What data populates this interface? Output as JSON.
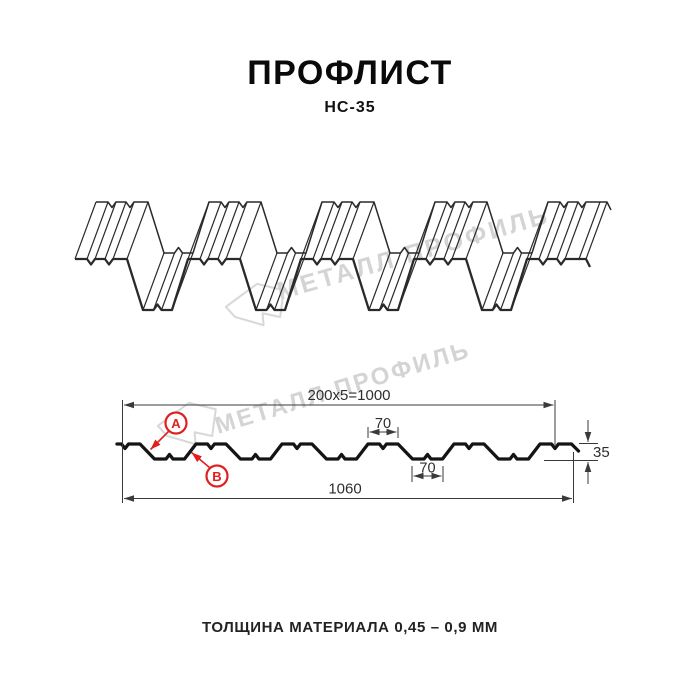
{
  "title": "ПРОФЛИСТ",
  "subtitle": "НС-35",
  "watermark": {
    "brand": "МЕТАЛЛ ПРОФИЛЬ",
    "color": "#d4d4d4"
  },
  "diagram": {
    "dimensions": {
      "top_width": "200x5=1000",
      "crest_width": "70",
      "valley_width": "70",
      "full_width": "1060",
      "height": "35"
    },
    "callouts": {
      "a": "A",
      "b": "B"
    },
    "colors": {
      "accent": "#e02020",
      "profile_line": "#141414",
      "sketch_line": "#2a2a2a",
      "dimension_line": "#3a3a3a"
    }
  },
  "footer": {
    "thickness_note": "ТОЛЩИНА МАТЕРИАЛА 0,45 – 0,9 ММ"
  }
}
